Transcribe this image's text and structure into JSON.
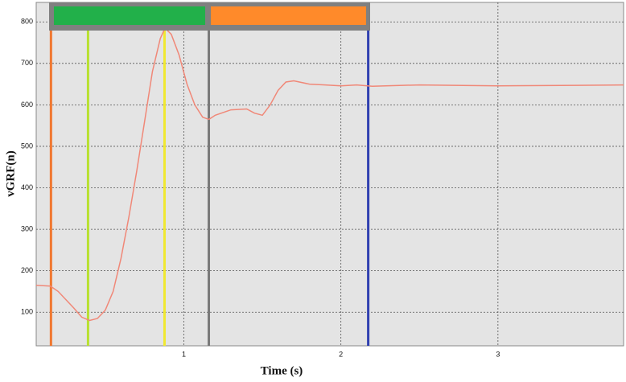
{
  "chart_data": {
    "type": "line",
    "x_label": "Time (s)",
    "y_label": "vGRF(n)",
    "xlim": [
      0.06,
      3.8
    ],
    "ylim": [
      19,
      847
    ],
    "xticks": [
      1,
      2,
      3
    ],
    "yticks": [
      100,
      200,
      300,
      400,
      500,
      600,
      700,
      800
    ],
    "grid": true,
    "series": [
      {
        "color": "#f08878",
        "x": [
          0.06,
          0.15,
          0.2,
          0.3,
          0.35,
          0.4,
          0.45,
          0.5,
          0.55,
          0.6,
          0.65,
          0.7,
          0.75,
          0.8,
          0.85,
          0.88,
          0.92,
          0.97,
          1.02,
          1.07,
          1.12,
          1.16,
          1.2,
          1.3,
          1.4,
          1.45,
          1.5,
          1.55,
          1.6,
          1.65,
          1.7,
          1.8,
          1.9,
          2.0,
          2.1,
          2.2,
          2.5,
          3.0,
          3.5,
          3.8
        ],
        "values": [
          165,
          163,
          150,
          110,
          88,
          80,
          85,
          105,
          150,
          230,
          330,
          440,
          560,
          680,
          760,
          785,
          770,
          720,
          650,
          600,
          570,
          565,
          575,
          588,
          590,
          580,
          575,
          600,
          635,
          655,
          658,
          650,
          648,
          646,
          648,
          645,
          648,
          646,
          647,
          648
        ]
      }
    ],
    "vlines": [
      {
        "x": 0.154,
        "color": "#f07830"
      },
      {
        "x": 0.39,
        "color": "#b8e030"
      },
      {
        "x": 0.877,
        "color": "#f0e830"
      },
      {
        "x": 1.159,
        "color": "#7a7a7a"
      },
      {
        "x": 2.174,
        "color": "#3040b0"
      }
    ]
  }
}
